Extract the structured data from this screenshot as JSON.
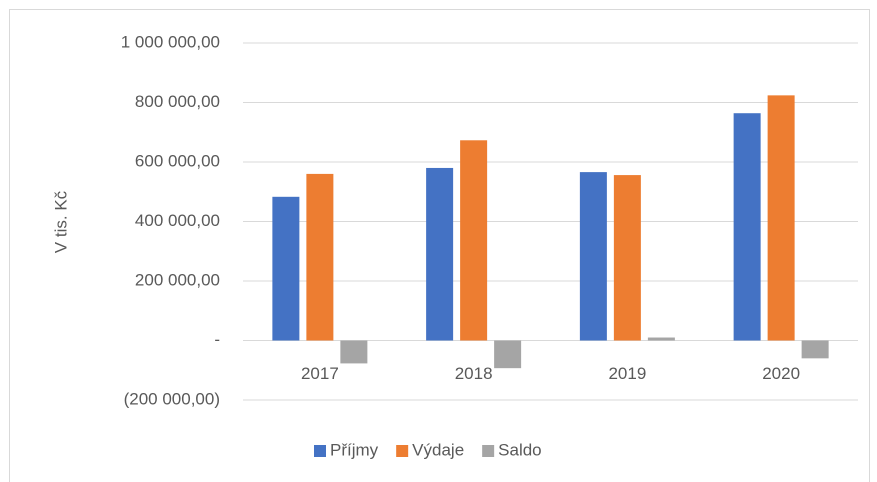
{
  "chart_data": {
    "type": "bar",
    "y_axis_label": "V tis. Kč",
    "categories": [
      "2017",
      "2018",
      "2019",
      "2020"
    ],
    "series": [
      {
        "name": "Příjmy",
        "color": "#4472c4",
        "values": [
          483000,
          580000,
          566000,
          764000
        ]
      },
      {
        "name": "Výdaje",
        "color": "#ed7d31",
        "values": [
          560000,
          673000,
          556000,
          824000
        ]
      },
      {
        "name": "Saldo",
        "color": "#a5a5a5",
        "values": [
          -77000,
          -93000,
          10000,
          -60000
        ]
      }
    ],
    "ylim": [
      -200000,
      1000000
    ],
    "yticks": [
      {
        "value": -200000,
        "label": "(200 000,00)"
      },
      {
        "value": 0,
        "label": "-"
      },
      {
        "value": 200000,
        "label": "200 000,00"
      },
      {
        "value": 400000,
        "label": "400 000,00"
      },
      {
        "value": 600000,
        "label": "600 000,00"
      },
      {
        "value": 800000,
        "label": "800 000,00"
      },
      {
        "value": 1000000,
        "label": "1 000 000,00"
      }
    ],
    "grid": true,
    "legend": "bottom"
  }
}
